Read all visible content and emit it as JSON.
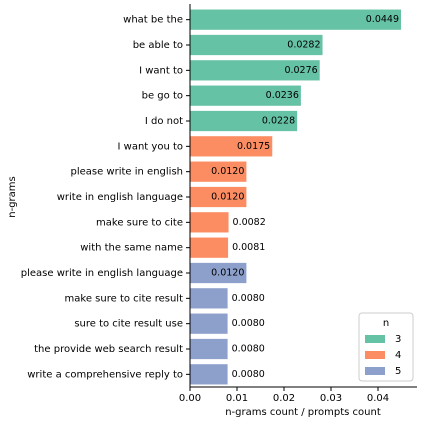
{
  "chart_data": {
    "type": "barh",
    "xlabel": "n-grams count / prompts count",
    "ylabel": "n-grams",
    "categories": [
      "what be the",
      "be able to",
      "I want to",
      "be go to",
      "I do not",
      "I want you to",
      "please write in english",
      "write in english language",
      "make sure to cite",
      "with the same name",
      "please write in english language",
      "make sure to cite result",
      "sure to cite result use",
      "the provide web search result",
      "write a comprehensive reply to"
    ],
    "series": [
      {
        "name": "3",
        "color": "#66c2a5",
        "values": [
          0.0449,
          0.0282,
          0.0276,
          0.0236,
          0.0228,
          null,
          null,
          null,
          null,
          null,
          null,
          null,
          null,
          null,
          null
        ],
        "value_labels": [
          "0.0449",
          "0.0282",
          "0.0276",
          "0.0236",
          "0.0228",
          null,
          null,
          null,
          null,
          null,
          null,
          null,
          null,
          null,
          null
        ]
      },
      {
        "name": "4",
        "color": "#fc8d62",
        "values": [
          null,
          null,
          null,
          null,
          null,
          0.0175,
          0.012,
          0.012,
          0.0082,
          0.0081,
          null,
          null,
          null,
          null,
          null
        ],
        "value_labels": [
          null,
          null,
          null,
          null,
          null,
          "0.0175",
          "0.0120",
          "0.0120",
          "0.0082",
          "0.0081",
          null,
          null,
          null,
          null,
          null
        ]
      },
      {
        "name": "5",
        "color": "#8da0cb",
        "values": [
          null,
          null,
          null,
          null,
          null,
          null,
          null,
          null,
          null,
          null,
          0.012,
          0.008,
          0.008,
          0.008,
          0.008
        ],
        "value_labels": [
          null,
          null,
          null,
          null,
          null,
          null,
          null,
          null,
          null,
          null,
          "0.0120",
          "0.0080",
          "0.0080",
          "0.0080",
          "0.0080"
        ]
      }
    ],
    "xlim": [
      0,
      0.0483
    ],
    "xticks": [
      {
        "value": 0,
        "label": "0.00"
      },
      {
        "value": 0.01,
        "label": "0.01"
      },
      {
        "value": 0.02,
        "label": "0.02"
      },
      {
        "value": 0.03,
        "label": "0.03"
      },
      {
        "value": 0.04,
        "label": "0.04"
      }
    ],
    "legend": {
      "title": "n",
      "position": "lower right"
    }
  }
}
